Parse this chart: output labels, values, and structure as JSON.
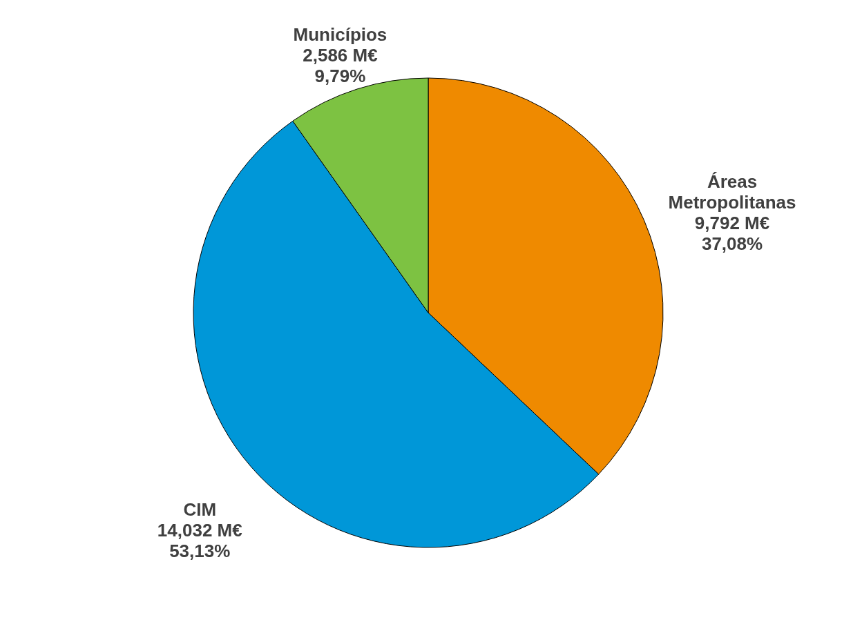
{
  "chart_data": {
    "type": "pie",
    "categories": [
      "Áreas Metropolitanas",
      "CIM",
      "Municípios"
    ],
    "values": [
      37.08,
      53.13,
      9.79
    ],
    "colors": [
      "#ef8a00",
      "#0097d8",
      "#7dc242"
    ],
    "value_labels": [
      "37,08%",
      "53,13%",
      "9,79%"
    ],
    "annotations": [
      "9,792 M€",
      "14,032 M€",
      "2,586 M€"
    ]
  }
}
